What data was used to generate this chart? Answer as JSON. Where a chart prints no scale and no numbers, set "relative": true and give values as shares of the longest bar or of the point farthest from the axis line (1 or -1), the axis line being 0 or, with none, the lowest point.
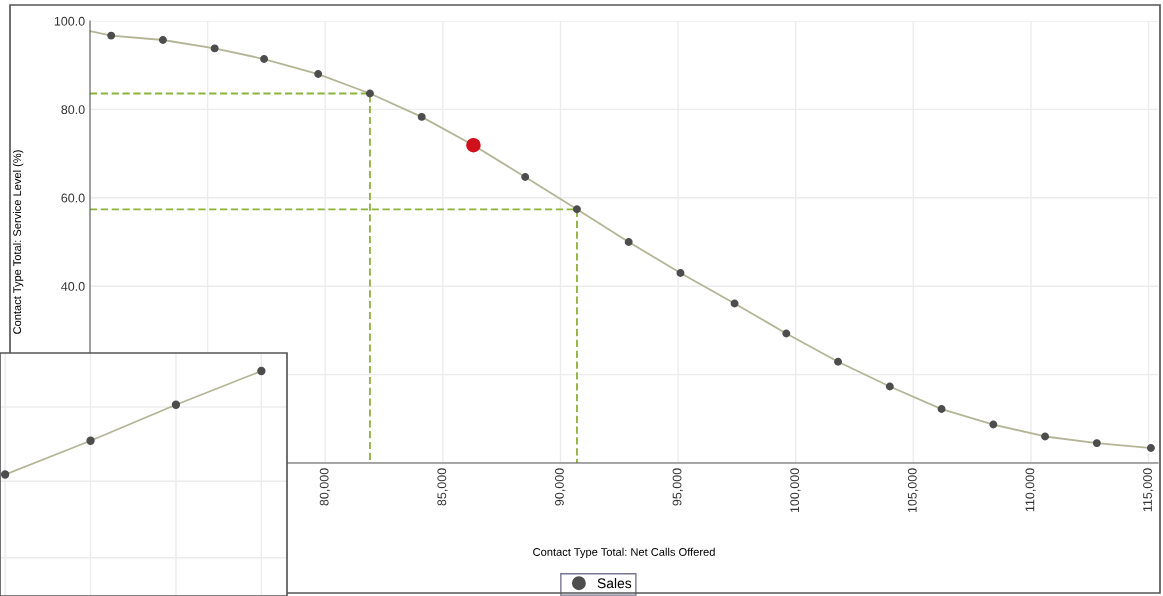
{
  "chart_data": [
    {
      "type": "line",
      "xlabel": "Contact Type Total: Net Calls Offered",
      "ylabel": "Contact Type Total: Service Level (%)",
      "xlim": [
        70000,
        115400
      ],
      "ylim": [
        0,
        100
      ],
      "xticks": [
        {
          "value": 75000,
          "label": null
        },
        {
          "value": 80000,
          "label": "80,000"
        },
        {
          "value": 85000,
          "label": "85,000"
        },
        {
          "value": 90000,
          "label": "90,000"
        },
        {
          "value": 95000,
          "label": "95,000"
        },
        {
          "value": 100000,
          "label": "100,000"
        },
        {
          "value": 105000,
          "label": "105,000"
        },
        {
          "value": 110000,
          "label": "110,000"
        },
        {
          "value": 115000,
          "label": "115,000"
        }
      ],
      "yticks": [
        {
          "value": 0,
          "label": null
        },
        {
          "value": 20,
          "label": null
        },
        {
          "value": 40,
          "label": "40.0"
        },
        {
          "value": 60,
          "label": "60.0"
        },
        {
          "value": 80,
          "label": "80.0"
        },
        {
          "value": 100,
          "label": "100.0"
        }
      ],
      "grid": true,
      "legend": "bottom",
      "series": [
        {
          "type": "line",
          "color": "#b4b596",
          "marker": "none",
          "x": [
            70000,
            70900,
            73100,
            75300,
            77400,
            79700,
            81900,
            84100,
            86300,
            88500,
            90700,
            92900,
            95100,
            97400,
            99600,
            101800,
            104000,
            106200,
            108400,
            110600,
            112800,
            115100
          ],
          "values": [
            97.7,
            96.7,
            95.7,
            93.8,
            91.4,
            88.0,
            83.6,
            78.3,
            71.9,
            64.7,
            57.4,
            50.0,
            43.0,
            36.1,
            29.3,
            22.9,
            17.3,
            12.2,
            8.7,
            6.0,
            4.5,
            3.4
          ]
        },
        {
          "type": "scatter",
          "name": "Sales",
          "color": "#4d4d4d",
          "marker": "circle",
          "x": [
            70900,
            73100,
            75300,
            77400,
            79700,
            81900,
            84100,
            88500,
            90700,
            92900,
            95100,
            97400,
            99600,
            101800,
            104000,
            106200,
            108400,
            110600,
            112800,
            115100
          ],
          "values": [
            96.7,
            95.7,
            93.8,
            91.4,
            88.0,
            83.6,
            78.3,
            64.7,
            57.4,
            50.0,
            43.0,
            36.1,
            29.3,
            22.9,
            17.3,
            12.2,
            8.7,
            6.0,
            4.5,
            3.4
          ]
        },
        {
          "type": "scatter",
          "color": "#d0111b",
          "marker": "circle",
          "x": [
            86300
          ],
          "values": [
            71.9
          ]
        },
        {
          "type": "line",
          "color": "#8db33a",
          "line_style": "dashed",
          "marker": "none",
          "x": [
            70000,
            81900,
            81900
          ],
          "values": [
            83.6,
            83.6,
            0
          ]
        },
        {
          "type": "line",
          "color": "#8db33a",
          "line_style": "dashed",
          "marker": "none",
          "x": [
            70000,
            90700,
            90700
          ],
          "values": [
            57.4,
            57.4,
            0
          ]
        }
      ]
    },
    {
      "type": "line",
      "relative": true,
      "grid": true,
      "categories": [
        null,
        null,
        null,
        null
      ],
      "series": [
        {
          "color": "#b4b596",
          "marker": "circle",
          "values": [
            0.54,
            0.69,
            0.85,
            1
          ]
        }
      ]
    }
  ]
}
